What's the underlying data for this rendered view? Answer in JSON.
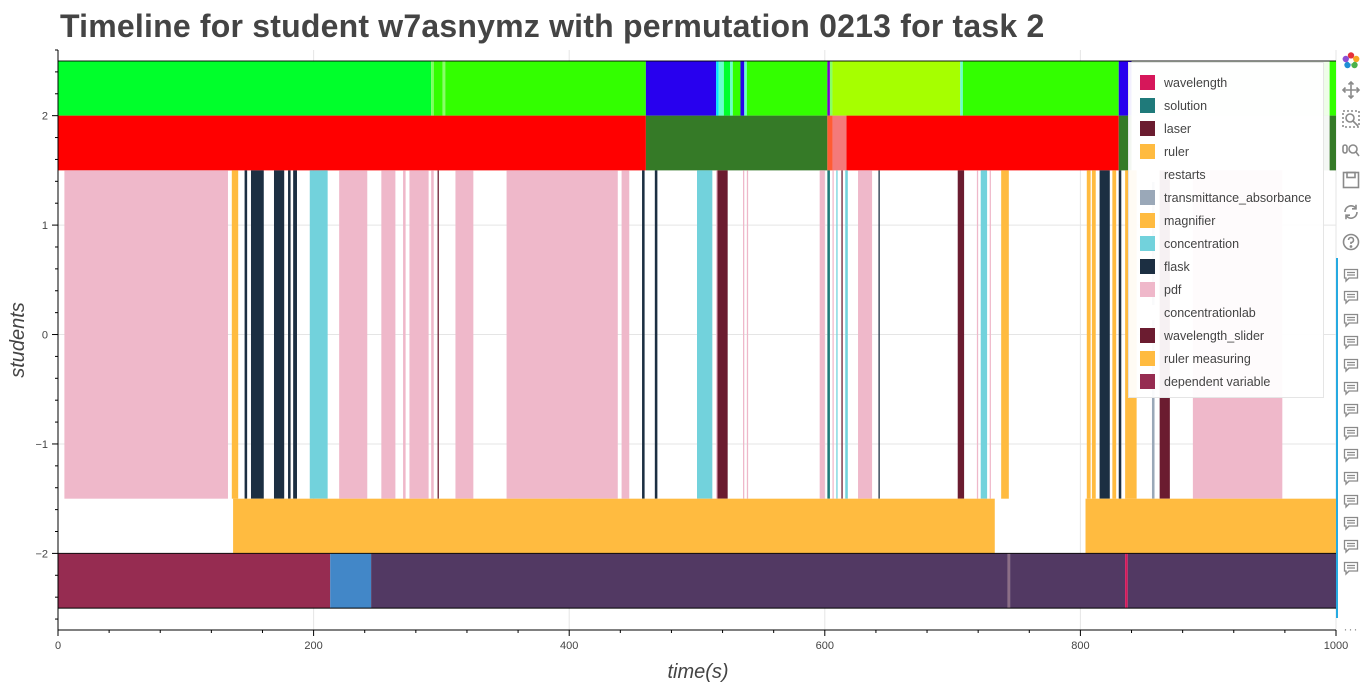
{
  "chart_data": {
    "type": "timeline",
    "title": "Timeline for student w7asnymz with permutation 0213 for task 2",
    "xlabel": "time(s)",
    "ylabel": "students",
    "xlim": [
      0,
      1000
    ],
    "ylim": [
      -2.7,
      2.6
    ],
    "x_ticks": [
      0,
      200,
      400,
      600,
      800,
      1000
    ],
    "y_ticks": [
      -2,
      -1,
      0,
      1,
      2
    ],
    "x_tick_labels": [
      "0",
      "200",
      "400",
      "600",
      "800",
      "1000"
    ],
    "y_tick_labels": [
      "−2",
      "−1",
      "0",
      "1",
      "2"
    ],
    "grid": true,
    "legend_position": "top-right",
    "legend": [
      {
        "label": "wavelength",
        "color": "#d6175a"
      },
      {
        "label": "solution",
        "color": "#1f7a7a"
      },
      {
        "label": "laser",
        "color": "#6b1c30"
      },
      {
        "label": "ruler",
        "color": "#ffbb40"
      },
      {
        "label": "restarts",
        "color": "#ffffff"
      },
      {
        "label": "transmittance_absorbance",
        "color": "#9aa8b8"
      },
      {
        "label": "magnifier",
        "color": "#ffbb40"
      },
      {
        "label": "concentration",
        "color": "#72d2dc"
      },
      {
        "label": "flask",
        "color": "#1c2f42"
      },
      {
        "label": "pdf",
        "color": "#efb8ca"
      },
      {
        "label": "concentrationlab",
        "color": "#ffffff"
      },
      {
        "label": "wavelength_slider",
        "color": "#6b1c30"
      },
      {
        "label": "ruler measuring",
        "color": "#ffbb40"
      },
      {
        "label": "dependent variable",
        "color": "#962c51"
      }
    ],
    "rows": [
      {
        "y": [
          2,
          2.5
        ],
        "segments": [
          {
            "x0": 0,
            "x1": 292,
            "color": "#00ff2b"
          },
          {
            "x0": 292,
            "x1": 294,
            "color": "#7dff60"
          },
          {
            "x0": 294,
            "x1": 301,
            "color": "#33ff00"
          },
          {
            "x0": 301,
            "x1": 303,
            "color": "#88ff66"
          },
          {
            "x0": 303,
            "x1": 460,
            "color": "#33ff00"
          },
          {
            "x0": 460,
            "x1": 515,
            "color": "#2800ee"
          },
          {
            "x0": 515,
            "x1": 517,
            "color": "#00e5ff"
          },
          {
            "x0": 517,
            "x1": 521,
            "color": "#66ffcc"
          },
          {
            "x0": 521,
            "x1": 526,
            "color": "#00ff2b"
          },
          {
            "x0": 526,
            "x1": 528,
            "color": "#66ffcc"
          },
          {
            "x0": 528,
            "x1": 534,
            "color": "#33ff00"
          },
          {
            "x0": 534,
            "x1": 537,
            "color": "#2800ee"
          },
          {
            "x0": 537,
            "x1": 539,
            "color": "#66ffcc"
          },
          {
            "x0": 539,
            "x1": 602,
            "color": "#33ff00"
          },
          {
            "x0": 602,
            "x1": 604,
            "color": "#7a00cc"
          },
          {
            "x0": 604,
            "x1": 606,
            "color": "#88ff66"
          },
          {
            "x0": 606,
            "x1": 706,
            "color": "#a6ff00"
          },
          {
            "x0": 706,
            "x1": 708,
            "color": "#66ffcc"
          },
          {
            "x0": 708,
            "x1": 830,
            "color": "#33ff00"
          },
          {
            "x0": 830,
            "x1": 840,
            "color": "#2800ee"
          },
          {
            "x0": 840,
            "x1": 995,
            "color": "#eefde8"
          },
          {
            "x0": 995,
            "x1": 1000,
            "color": "#33ff00"
          }
        ]
      },
      {
        "y": [
          1.5,
          2
        ],
        "segments": [
          {
            "x0": 0,
            "x1": 460,
            "color": "#ff0000"
          },
          {
            "x0": 460,
            "x1": 602,
            "color": "#357a27"
          },
          {
            "x0": 602,
            "x1": 606,
            "color": "#ff5c33"
          },
          {
            "x0": 606,
            "x1": 617,
            "color": "#f47a7a"
          },
          {
            "x0": 617,
            "x1": 830,
            "color": "#ff0000"
          },
          {
            "x0": 830,
            "x1": 840,
            "color": "#357a27"
          },
          {
            "x0": 840,
            "x1": 995,
            "color": "#f4f7f4"
          },
          {
            "x0": 995,
            "x1": 1000,
            "color": "#357a27"
          }
        ]
      },
      {
        "y": [
          -1.5,
          1.5
        ],
        "segments": [
          {
            "x0": 5,
            "x1": 133,
            "color": "#efb8ca"
          },
          {
            "x0": 136,
            "x1": 141,
            "color": "#ffbb40"
          },
          {
            "x0": 146,
            "x1": 148,
            "color": "#1c2f42"
          },
          {
            "x0": 151,
            "x1": 161,
            "color": "#1c2f42"
          },
          {
            "x0": 169,
            "x1": 177,
            "color": "#1c2f42"
          },
          {
            "x0": 180,
            "x1": 182,
            "color": "#1c2f42"
          },
          {
            "x0": 184,
            "x1": 187,
            "color": "#1c2f42"
          },
          {
            "x0": 197,
            "x1": 211,
            "color": "#72d2dc"
          },
          {
            "x0": 220,
            "x1": 242,
            "color": "#efb8ca"
          },
          {
            "x0": 253,
            "x1": 264,
            "color": "#efb8ca"
          },
          {
            "x0": 270,
            "x1": 272,
            "color": "#efb8ca"
          },
          {
            "x0": 275,
            "x1": 290,
            "color": "#efb8ca"
          },
          {
            "x0": 292,
            "x1": 294,
            "color": "#efb8ca"
          },
          {
            "x0": 297,
            "x1": 298,
            "color": "#6b1c30"
          },
          {
            "x0": 311,
            "x1": 325,
            "color": "#efb8ca"
          },
          {
            "x0": 351,
            "x1": 438,
            "color": "#efb8ca"
          },
          {
            "x0": 441,
            "x1": 447,
            "color": "#efb8ca"
          },
          {
            "x0": 457,
            "x1": 459,
            "color": "#1c2f42"
          },
          {
            "x0": 467,
            "x1": 469,
            "color": "#1c2f42"
          },
          {
            "x0": 500,
            "x1": 512,
            "color": "#72d2dc"
          },
          {
            "x0": 515,
            "x1": 516,
            "color": "#efb8ca"
          },
          {
            "x0": 516,
            "x1": 524,
            "color": "#6b1c30"
          },
          {
            "x0": 536,
            "x1": 537,
            "color": "#efb8ca"
          },
          {
            "x0": 539,
            "x1": 540,
            "color": "#efb8ca"
          },
          {
            "x0": 596,
            "x1": 600,
            "color": "#efb8ca"
          },
          {
            "x0": 602,
            "x1": 604,
            "color": "#1f7a7a"
          },
          {
            "x0": 606,
            "x1": 607,
            "color": "#efb8ca"
          },
          {
            "x0": 609,
            "x1": 610,
            "color": "#72d2dc"
          },
          {
            "x0": 613,
            "x1": 614,
            "color": "#6b1c30"
          },
          {
            "x0": 616,
            "x1": 618,
            "color": "#72d2dc"
          },
          {
            "x0": 626,
            "x1": 637,
            "color": "#efb8ca"
          },
          {
            "x0": 642,
            "x1": 643,
            "color": "#1c2f42"
          },
          {
            "x0": 704,
            "x1": 709,
            "color": "#6b1c30"
          },
          {
            "x0": 719,
            "x1": 720,
            "color": "#efb8ca"
          },
          {
            "x0": 722,
            "x1": 727,
            "color": "#72d2dc"
          },
          {
            "x0": 729,
            "x1": 730,
            "color": "#efb8ca"
          },
          {
            "x0": 738,
            "x1": 744,
            "color": "#ffbb40"
          },
          {
            "x0": 805,
            "x1": 808,
            "color": "#ffbb40"
          },
          {
            "x0": 809,
            "x1": 812,
            "color": "#ffbb40"
          },
          {
            "x0": 815,
            "x1": 823,
            "color": "#1c2f42"
          },
          {
            "x0": 825,
            "x1": 828,
            "color": "#ffbb40"
          },
          {
            "x0": 830,
            "x1": 832,
            "color": "#1c2f42"
          },
          {
            "x0": 835,
            "x1": 844,
            "color": "#ffbb40"
          },
          {
            "x0": 856,
            "x1": 858,
            "color": "#9aa8b8"
          },
          {
            "x0": 862,
            "x1": 870,
            "color": "#6b1c30"
          },
          {
            "x0": 888,
            "x1": 958,
            "color": "#efb8ca"
          }
        ]
      },
      {
        "y": [
          -2,
          -1.5
        ],
        "segments": [
          {
            "x0": 137,
            "x1": 733,
            "color": "#ffbb40"
          },
          {
            "x0": 804,
            "x1": 1000,
            "color": "#ffbb40"
          }
        ]
      },
      {
        "y": [
          -2.5,
          -2
        ],
        "segments": [
          {
            "x0": 0,
            "x1": 213,
            "color": "#962c51"
          },
          {
            "x0": 213,
            "x1": 245,
            "color": "#4287c8"
          },
          {
            "x0": 245,
            "x1": 743,
            "color": "#523963"
          },
          {
            "x0": 743,
            "x1": 745,
            "color": "#8b6e86"
          },
          {
            "x0": 745,
            "x1": 835,
            "color": "#523963"
          },
          {
            "x0": 835,
            "x1": 837,
            "color": "#d6175a"
          },
          {
            "x0": 837,
            "x1": 1000,
            "color": "#523963"
          }
        ]
      }
    ]
  },
  "toolbar": {
    "logo_icon": "bokeh-logo-icon",
    "pan_icon": "pan-icon",
    "zoom_icon": "box-zoom-icon",
    "wheel_zoom_icon": "wheel-zoom-icon",
    "save_icon": "save-icon",
    "reset_icon": "reset-icon",
    "help_icon": "help-icon",
    "hover_icon": "hover-icon",
    "more_label": "···"
  }
}
